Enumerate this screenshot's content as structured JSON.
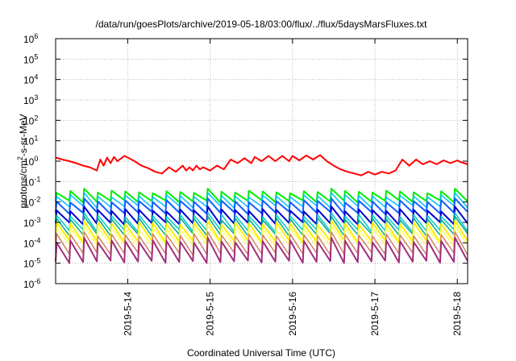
{
  "chart_data": {
    "type": "line",
    "title": "/data/run/goesPlots/archive/2019-05-18/03:00/flux/../flux/5daysMarsFluxes.txt",
    "xlabel": "Coordinated Universal Time (UTC)",
    "ylabel": "protons/cm2-s-sr-MeV",
    "ylabel_parts": {
      "pre": "protons/cm",
      "sup": "2",
      "post": "-s-sr-MeV"
    },
    "y_scale": "log",
    "ylim": [
      1e-06,
      1000000.0
    ],
    "y_ticks": [
      {
        "value": 1e-06,
        "base": "10",
        "exp": "-6"
      },
      {
        "value": 1e-05,
        "base": "10",
        "exp": "-5"
      },
      {
        "value": 0.0001,
        "base": "10",
        "exp": "-4"
      },
      {
        "value": 0.001,
        "base": "10",
        "exp": "-3"
      },
      {
        "value": 0.01,
        "base": "10",
        "exp": "-2"
      },
      {
        "value": 0.1,
        "base": "10",
        "exp": "-1"
      },
      {
        "value": 1,
        "base": "10",
        "exp": "0"
      },
      {
        "value": 10,
        "base": "10",
        "exp": "1"
      },
      {
        "value": 100,
        "base": "10",
        "exp": "2"
      },
      {
        "value": 1000,
        "base": "10",
        "exp": "3"
      },
      {
        "value": 10000,
        "base": "10",
        "exp": "4"
      },
      {
        "value": 100000,
        "base": "10",
        "exp": "5"
      },
      {
        "value": 1000000,
        "base": "10",
        "exp": "6"
      }
    ],
    "xlim": [
      "2019-05-13 03:00",
      "2019-05-18 03:00"
    ],
    "x_ticks": [
      {
        "value": "2019-05-14 00:00",
        "label": "2019-5-14"
      },
      {
        "value": "2019-05-15 00:00",
        "label": "2019-5-15"
      },
      {
        "value": "2019-05-16 00:00",
        "label": "2019-5-16"
      },
      {
        "value": "2019-05-17 00:00",
        "label": "2019-5-17"
      },
      {
        "value": "2019-05-18 00:00",
        "label": "2019-5-18"
      }
    ],
    "grid": true,
    "legend": "none",
    "series": [
      {
        "color": "#ff0000",
        "width": 2,
        "times": [
          "2019-05-13 03:00",
          "2019-05-13 05:00",
          "2019-05-13 07:00",
          "2019-05-13 09:00",
          "2019-05-13 11:00",
          "2019-05-13 13:00",
          "2019-05-13 15:00",
          "2019-05-13 16:00",
          "2019-05-13 17:00",
          "2019-05-13 18:00",
          "2019-05-13 19:00",
          "2019-05-13 20:00",
          "2019-05-13 21:00",
          "2019-05-13 23:00",
          "2019-05-14 00:00",
          "2019-05-14 02:00",
          "2019-05-14 04:00",
          "2019-05-14 06:00",
          "2019-05-14 08:00",
          "2019-05-14 10:00",
          "2019-05-14 12:00",
          "2019-05-14 14:00",
          "2019-05-14 16:00",
          "2019-05-14 17:00",
          "2019-05-14 18:00",
          "2019-05-14 19:00",
          "2019-05-14 20:00",
          "2019-05-14 21:00",
          "2019-05-14 22:00",
          "2019-05-15 00:00",
          "2019-05-15 02:00",
          "2019-05-15 04:00",
          "2019-05-15 06:00",
          "2019-05-15 08:00",
          "2019-05-15 10:00",
          "2019-05-15 12:00",
          "2019-05-15 13:00",
          "2019-05-15 15:00",
          "2019-05-15 17:00",
          "2019-05-15 19:00",
          "2019-05-15 21:00",
          "2019-05-15 23:00",
          "2019-05-16 00:00",
          "2019-05-16 02:00",
          "2019-05-16 04:00",
          "2019-05-16 06:00",
          "2019-05-16 08:00",
          "2019-05-16 10:00",
          "2019-05-16 12:00",
          "2019-05-16 14:00",
          "2019-05-16 16:00",
          "2019-05-16 18:00",
          "2019-05-16 20:00",
          "2019-05-16 22:00",
          "2019-05-17 00:00",
          "2019-05-17 02:00",
          "2019-05-17 04:00",
          "2019-05-17 06:00",
          "2019-05-17 08:00",
          "2019-05-17 10:00",
          "2019-05-17 12:00",
          "2019-05-17 14:00",
          "2019-05-17 16:00",
          "2019-05-17 18:00",
          "2019-05-17 20:00",
          "2019-05-17 22:00",
          "2019-05-18 00:00",
          "2019-05-18 01:00",
          "2019-05-18 02:00",
          "2019-05-18 03:00"
        ],
        "values": [
          1.5,
          1.2,
          1.0,
          0.8,
          0.6,
          0.5,
          0.35,
          1.2,
          0.6,
          1.5,
          0.8,
          1.6,
          1.0,
          1.8,
          1.5,
          1.0,
          0.6,
          0.45,
          0.3,
          0.25,
          0.5,
          0.3,
          0.6,
          0.35,
          0.5,
          0.35,
          0.6,
          0.4,
          0.5,
          0.35,
          0.6,
          0.4,
          1.2,
          0.8,
          1.4,
          0.8,
          1.6,
          1.0,
          1.8,
          1.0,
          1.8,
          1.0,
          1.8,
          1.1,
          1.9,
          1.2,
          2.0,
          1.0,
          0.6,
          0.4,
          0.3,
          0.25,
          0.2,
          0.3,
          0.22,
          0.3,
          0.25,
          0.35,
          1.2,
          0.6,
          1.2,
          0.7,
          1.0,
          0.7,
          1.1,
          0.8,
          1.1,
          0.9,
          0.8,
          0.7
        ]
      },
      {
        "color": "#00ee00",
        "width": 2,
        "teeth": true,
        "high": 0.032,
        "low": 0.011,
        "spike": 0.045
      },
      {
        "color": "#00c0ff",
        "width": 1.5,
        "teeth": true,
        "high": 0.02,
        "low": 0.006,
        "spike": 0.028
      },
      {
        "color": "#1060ff",
        "width": 2,
        "teeth": true,
        "high": 0.011,
        "low": 0.003,
        "spike": 0.015
      },
      {
        "color": "#0000cc",
        "width": 2,
        "teeth": true,
        "high": 0.004,
        "low": 0.0009,
        "spike": 0.006
      },
      {
        "color": "#00cccc",
        "width": 1.5,
        "teeth": true,
        "high": 0.0022,
        "low": 0.0004,
        "spike": 0.003
      },
      {
        "color": "#00aa88",
        "width": 1.5,
        "teeth": true,
        "high": 0.0015,
        "low": 0.00025,
        "spike": 0.002
      },
      {
        "color": "#ffee00",
        "width": 2,
        "teeth": true,
        "high": 0.0009,
        "low": 0.00012,
        "spike": 0.0012
      },
      {
        "color": "#ffff66",
        "width": 1.5,
        "teeth": true,
        "high": 0.0005,
        "low": 8e-05,
        "spike": 0.0007
      },
      {
        "color": "#d08060",
        "width": 1.5,
        "teeth": true,
        "high": 0.00025,
        "low": 3e-05,
        "spike": 0.00035
      },
      {
        "color": "#a0307a",
        "width": 2,
        "teeth": true,
        "high": 0.00012,
        "low": 1.2e-05,
        "spike": 0.00018
      }
    ]
  }
}
